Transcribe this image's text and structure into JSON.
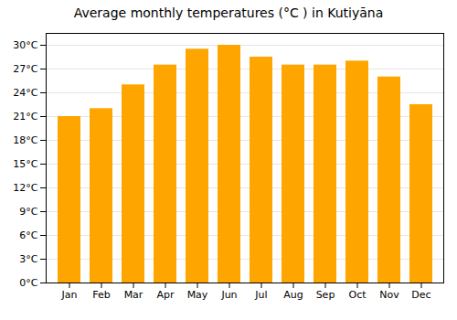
{
  "chart_data": {
    "type": "bar",
    "title": "Average monthly temperatures (°C ) in Kutiyāna",
    "categories": [
      "Jan",
      "Feb",
      "Mar",
      "Apr",
      "May",
      "Jun",
      "Jul",
      "Aug",
      "Sep",
      "Oct",
      "Nov",
      "Dec"
    ],
    "values": [
      21,
      22,
      25,
      27.5,
      29.5,
      30,
      28.5,
      27.5,
      27.5,
      28,
      26,
      22.5
    ],
    "color": "#FFA500",
    "ylim": [
      0,
      31.5
    ],
    "yticks": [
      {
        "value": 0,
        "label": "0°C"
      },
      {
        "value": 3,
        "label": "3°C"
      },
      {
        "value": 6,
        "label": "6°C"
      },
      {
        "value": 9,
        "label": "9°C"
      },
      {
        "value": 12,
        "label": "12°C"
      },
      {
        "value": 15,
        "label": "15°C"
      },
      {
        "value": 18,
        "label": "18°C"
      },
      {
        "value": 21,
        "label": "21°C"
      },
      {
        "value": 24,
        "label": "24°C"
      },
      {
        "value": 27,
        "label": "27°C"
      },
      {
        "value": 30,
        "label": "30°C"
      }
    ],
    "grid": true
  }
}
